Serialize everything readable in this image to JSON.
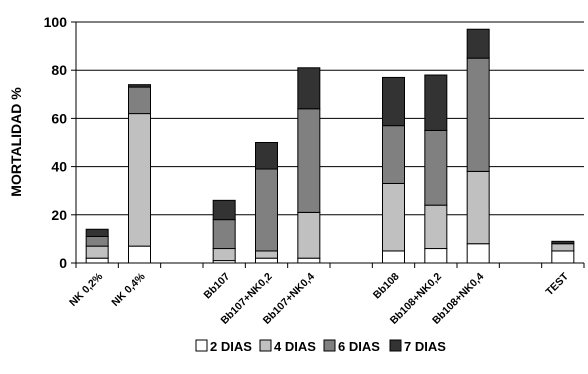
{
  "chart_data": {
    "type": "bar",
    "stacked": true,
    "ylabel": "MORTALIDAD %",
    "xlabel": "",
    "ylim": [
      0,
      100
    ],
    "yticks": [
      0,
      20,
      40,
      60,
      80,
      100
    ],
    "grid": true,
    "legend_position": "bottom",
    "categories": [
      "NK 0,2%",
      "NK 0,4%",
      "",
      "Bb107",
      "Bb107+NK0,2",
      "Bb107+NK0,4",
      "",
      "Bb108",
      "Bb108+NK0,2",
      "Bb108+NK0,4",
      "",
      "TEST"
    ],
    "series": [
      {
        "name": "2 DIAS",
        "color": "#ffffff",
        "values": [
          2,
          7,
          null,
          1,
          2,
          2,
          null,
          5,
          6,
          8,
          null,
          5
        ]
      },
      {
        "name": "4 DIAS",
        "color": "#c0c0c0",
        "values": [
          5,
          55,
          null,
          5,
          3,
          19,
          null,
          28,
          18,
          30,
          null,
          3
        ]
      },
      {
        "name": "6 DIAS",
        "color": "#808080",
        "values": [
          4,
          11,
          null,
          12,
          34,
          43,
          null,
          24,
          31,
          47,
          null,
          0
        ]
      },
      {
        "name": "7 DIAS",
        "color": "#333333",
        "values": [
          3,
          1,
          null,
          8,
          11,
          17,
          null,
          20,
          23,
          12,
          null,
          1
        ]
      }
    ]
  }
}
